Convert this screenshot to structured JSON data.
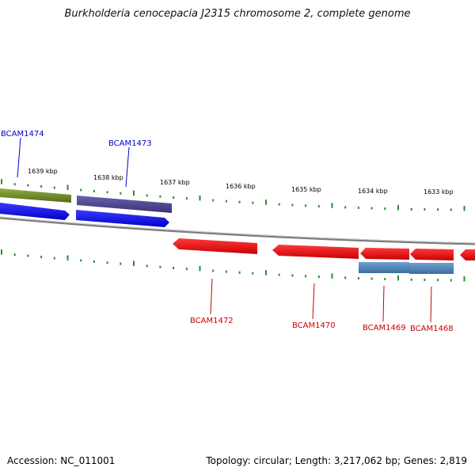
{
  "title": "Burkholderia cenocepacia J2315 chromosome 2, complete genome",
  "footer": {
    "accession": "Accession: NC_011001",
    "summary": "Topology: circular; Length: 3,217,062 bp; Genes: 2,819"
  },
  "ticks": [
    "1639 kbp",
    "1638 kbp",
    "1637 kbp",
    "1636 kbp",
    "1635 kbp",
    "1634 kbp",
    "1633 kbp"
  ],
  "genes": [
    {
      "name": "BCAM1474",
      "strand": "+",
      "label_color": "#0000cc",
      "feature_colors": [
        "#6b8e23",
        "#0000ee"
      ]
    },
    {
      "name": "BCAM1473",
      "strand": "+",
      "label_color": "#0000cc",
      "feature_colors": [
        "#483d8b",
        "#0000ee"
      ]
    },
    {
      "name": "BCAM1472",
      "strand": "-",
      "label_color": "#cc0000",
      "feature_colors": [
        "#ee0000"
      ]
    },
    {
      "name": "BCAM1470",
      "strand": "-",
      "label_color": "#cc0000",
      "feature_colors": [
        "#ee0000"
      ]
    },
    {
      "name": "BCAM1469",
      "strand": "-",
      "label_color": "#cc0000",
      "feature_colors": [
        "#ee0000",
        "#4682b4"
      ]
    },
    {
      "name": "BCAM1468",
      "strand": "-",
      "label_color": "#cc0000",
      "feature_colors": [
        "#ee0000",
        "#4682b4"
      ]
    }
  ]
}
